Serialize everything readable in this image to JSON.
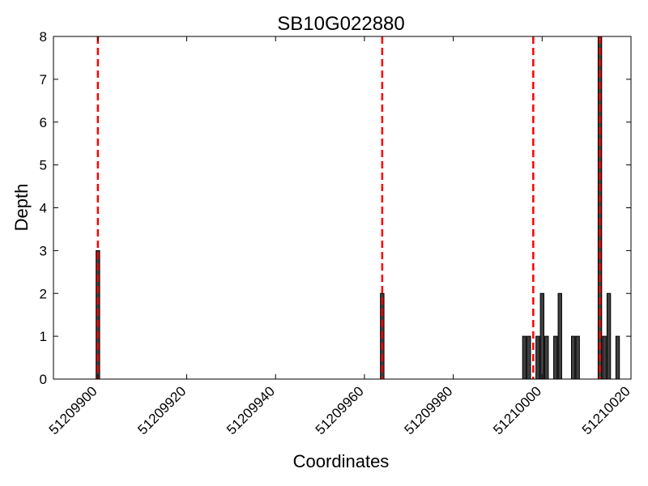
{
  "chart_data": {
    "type": "bar",
    "title": "SB10G022880",
    "xlabel": "Coordinates",
    "ylabel": "Depth",
    "xlim": [
      51209890,
      51210020
    ],
    "ylim": [
      0,
      8
    ],
    "xticks": [
      51209900,
      51209920,
      51209940,
      51209960,
      51209980,
      51210000,
      51210020
    ],
    "yticks": [
      0,
      1,
      2,
      3,
      4,
      5,
      6,
      7,
      8
    ],
    "bars": [
      {
        "x": 51209900,
        "value": 3
      },
      {
        "x": 51209964,
        "value": 2
      },
      {
        "x": 51209996,
        "value": 1
      },
      {
        "x": 51209997,
        "value": 1
      },
      {
        "x": 51209999,
        "value": 1
      },
      {
        "x": 51210000,
        "value": 2
      },
      {
        "x": 51210001,
        "value": 1
      },
      {
        "x": 51210003,
        "value": 1
      },
      {
        "x": 51210004,
        "value": 2
      },
      {
        "x": 51210007,
        "value": 1
      },
      {
        "x": 51210008,
        "value": 1
      },
      {
        "x": 51210013,
        "value": 8
      },
      {
        "x": 51210014,
        "value": 1
      },
      {
        "x": 51210015,
        "value": 2
      },
      {
        "x": 51210017,
        "value": 1
      }
    ],
    "reference_lines": [
      51209900,
      51209964,
      51209998,
      51210013
    ],
    "colors": {
      "bar_fill": "#404040",
      "bar_edge": "#000000",
      "reference_line": "#ff0000"
    },
    "grid": false
  }
}
